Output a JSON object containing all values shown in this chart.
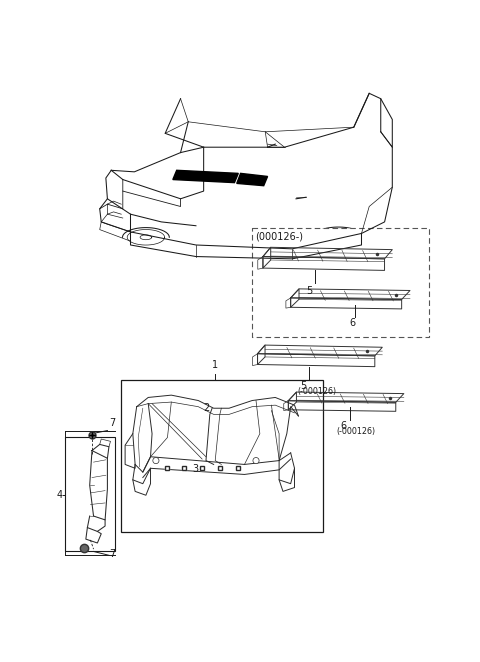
{
  "background_color": "#ffffff",
  "note_000126_box": "(000126-)",
  "note_5_lower": "5\n(-000126)",
  "note_6_lower": "6\n(-000126)",
  "label_fontsize": 7.0
}
